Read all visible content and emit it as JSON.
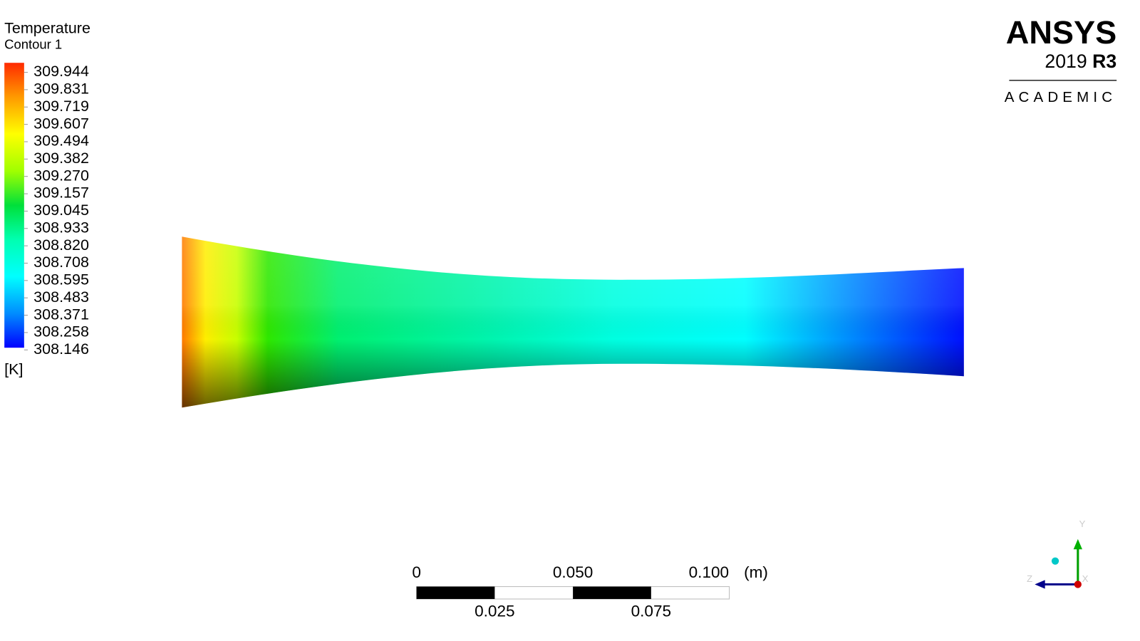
{
  "legend": {
    "title": "Temperature",
    "subtitle": "Contour 1",
    "levels": [
      "309.944",
      "309.831",
      "309.719",
      "309.607",
      "309.494",
      "309.382",
      "309.270",
      "309.157",
      "309.045",
      "308.933",
      "308.820",
      "308.708",
      "308.595",
      "308.483",
      "308.371",
      "308.258",
      "308.146"
    ],
    "unit": "[K]"
  },
  "logo": {
    "brand": "ANSYS",
    "year": "2019",
    "release": "R3",
    "edition": "ACADEMIC"
  },
  "scale_bar": {
    "top_labels": [
      "0",
      "0.050",
      "0.100"
    ],
    "unit": "(m)",
    "bottom_labels": [
      "0.025",
      "0.075"
    ]
  },
  "triad": {
    "y": "Y",
    "z": "Z",
    "x": "X"
  }
}
